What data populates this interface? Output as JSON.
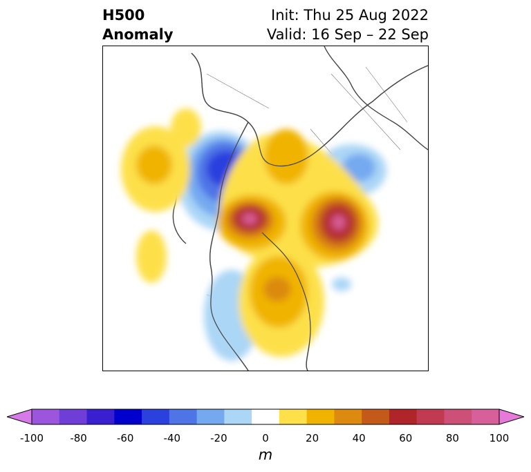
{
  "header": {
    "title_line1": "H500",
    "title_line2": "Anomaly",
    "init_text": "Init: Thu 25 Aug 2022",
    "valid_text": "Valid: 16 Sep – 22 Sep"
  },
  "colorbar": {
    "unit": "m",
    "ticks": [
      "-100",
      "-80",
      "-60",
      "-40",
      "-20",
      "0",
      "20",
      "40",
      "60",
      "80",
      "100"
    ],
    "colors": [
      "#d57ae6",
      "#9c55dd",
      "#6e3ed6",
      "#3a1fd1",
      "#0000cc",
      "#2a41de",
      "#4f74e6",
      "#74a9f0",
      "#abd6f6",
      "#ffffff",
      "#fde04a",
      "#f0b400",
      "#dc8a10",
      "#c45a1a",
      "#b0252a",
      "#c03a52",
      "#cc5078",
      "#d8609a",
      "#e57ad8"
    ]
  }
}
